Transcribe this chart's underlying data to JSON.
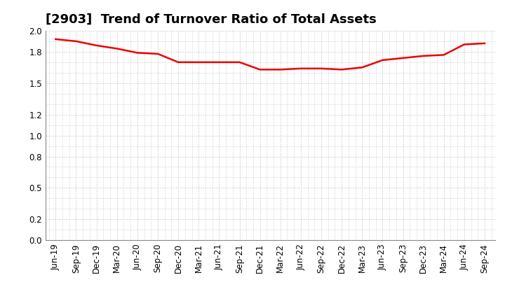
{
  "title": "[2903]  Trend of Turnover Ratio of Total Assets",
  "x_labels": [
    "Jun-19",
    "Sep-19",
    "Dec-19",
    "Mar-20",
    "Jun-20",
    "Sep-20",
    "Dec-20",
    "Mar-21",
    "Jun-21",
    "Sep-21",
    "Dec-21",
    "Mar-22",
    "Jun-22",
    "Sep-22",
    "Dec-22",
    "Mar-23",
    "Jun-23",
    "Sep-23",
    "Dec-23",
    "Mar-24",
    "Jun-24",
    "Sep-24"
  ],
  "y_values": [
    1.92,
    1.9,
    1.86,
    1.83,
    1.79,
    1.78,
    1.7,
    1.7,
    1.7,
    1.7,
    1.63,
    1.63,
    1.64,
    1.64,
    1.63,
    1.65,
    1.72,
    1.74,
    1.76,
    1.77,
    1.87,
    1.88
  ],
  "line_color": "#ee0000",
  "line_width": 1.8,
  "ylim": [
    0.0,
    2.0
  ],
  "yticks": [
    0.0,
    0.2,
    0.5,
    0.8,
    1.0,
    1.2,
    1.5,
    1.8,
    2.0
  ],
  "ytick_labels": [
    "0.0",
    "0.2",
    "0.5",
    "0.8",
    "1.0",
    "1.2",
    "1.5",
    "1.8",
    "2.0"
  ],
  "grid_color": "#bbbbbb",
  "background_color": "#ffffff",
  "title_fontsize": 13,
  "tick_fontsize": 8.5
}
